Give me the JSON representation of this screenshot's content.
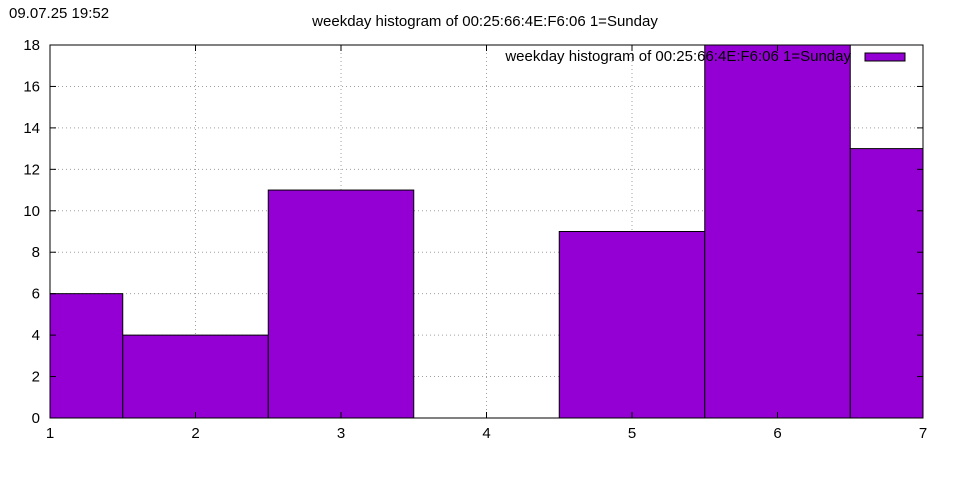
{
  "timestamp": "09.07.25 19:52",
  "chart_data": {
    "type": "bar",
    "title": "weekday histogram of 00:25:66:4E:F6:06 1=Sunday",
    "legend": {
      "label": "weekday histogram of 00:25:66:4E:F6:06 1=Sunday",
      "placement": "top-right",
      "color": "#9400d3"
    },
    "x": [
      1,
      2,
      3,
      4,
      5,
      6,
      7
    ],
    "values": [
      6,
      4,
      11,
      0,
      9,
      18,
      13
    ],
    "bar_width": 1,
    "xlim": [
      1,
      7
    ],
    "ylim": [
      0,
      18
    ],
    "xticks": [
      1,
      2,
      3,
      4,
      5,
      6,
      7
    ],
    "yticks": [
      0,
      2,
      4,
      6,
      8,
      10,
      12,
      14,
      16,
      18
    ],
    "grid": true,
    "bar_color": "#9400d3",
    "grid_color": "#a0a0a0"
  }
}
